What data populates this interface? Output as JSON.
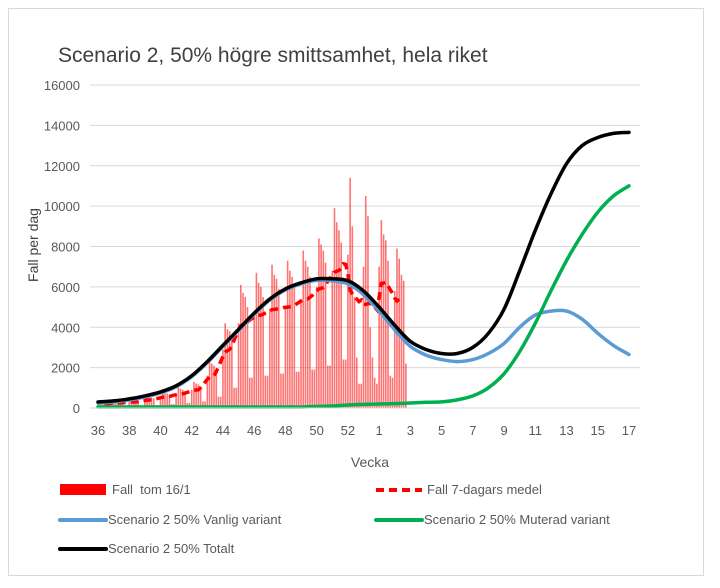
{
  "chart_data": {
    "type": "bar+line",
    "title": "Scenario 2, 50% högre smittsamhet, hela riket",
    "xlabel": "Vecka",
    "ylabel": "Fall per dag",
    "ylim": [
      0,
      16000
    ],
    "yticks": [
      0,
      2000,
      4000,
      6000,
      8000,
      10000,
      12000,
      14000,
      16000
    ],
    "grid": true,
    "legend_position": "bottom",
    "weeks": [
      "36",
      "37",
      "38",
      "39",
      "40",
      "41",
      "42",
      "43",
      "44",
      "45",
      "46",
      "47",
      "48",
      "49",
      "50",
      "51",
      "52",
      "53",
      "1",
      "2",
      "3",
      "4",
      "5",
      "6",
      "7",
      "8",
      "9",
      "10",
      "11",
      "12",
      "13",
      "14",
      "15",
      "16",
      "17"
    ],
    "xtick_labels": [
      "36",
      "38",
      "40",
      "42",
      "44",
      "46",
      "48",
      "50",
      "52",
      "1",
      "3",
      "5",
      "7",
      "9",
      "11",
      "13",
      "15",
      "17"
    ],
    "daily_cases": {
      "name": "Fall  tom 16/1",
      "color": "#ff0000",
      "values": [
        200,
        290,
        270,
        260,
        240,
        70,
        70,
        250,
        360,
        340,
        330,
        300,
        90,
        90,
        300,
        440,
        400,
        390,
        360,
        100,
        110,
        400,
        580,
        540,
        520,
        480,
        140,
        140,
        550,
        800,
        740,
        720,
        660,
        190,
        190,
        700,
        1020,
        950,
        910,
        840,
        250,
        250,
        900,
        1300,
        1220,
        1170,
        1080,
        320,
        320,
        1600,
        2300,
        2200,
        2100,
        1900,
        560,
        560,
        2900,
        4200,
        3900,
        3800,
        3500,
        1000,
        1000,
        4200,
        6100,
        5700,
        5500,
        5000,
        1500,
        1500,
        4600,
        6700,
        6200,
        6000,
        5500,
        1600,
        1600,
        4900,
        7100,
        6600,
        6400,
        5900,
        1700,
        1700,
        5000,
        7300,
        6800,
        6500,
        6000,
        1800,
        1800,
        5400,
        7800,
        7300,
        7000,
        6500,
        1900,
        1900,
        6000,
        8400,
        8100,
        7800,
        7200,
        2100,
        2100,
        6800,
        9900,
        9200,
        8800,
        8200,
        2400,
        2400,
        7600,
        11400,
        9000,
        5500,
        2500,
        1200,
        1200,
        7000,
        10500,
        9500,
        4000,
        2500,
        1500,
        1200,
        7000,
        9300,
        8600,
        8300,
        7300,
        1600,
        1500,
        5800,
        7900,
        7400,
        6600,
        6300,
        2200
      ]
    },
    "series": [
      {
        "name": "Fall 7-dagars medel",
        "color": "#ff0000",
        "style": "dashed",
        "derived_from": "daily_cases 7-day rolling mean"
      },
      {
        "name": "Scenario 2 50% Vanlig variant",
        "color": "#5b9bd5",
        "values": [
          250,
          300,
          400,
          550,
          750,
          1050,
          1550,
          2250,
          3050,
          3850,
          4650,
          5350,
          5850,
          6150,
          6320,
          6300,
          6150,
          5620,
          4800,
          3880,
          3050,
          2620,
          2400,
          2300,
          2400,
          2700,
          3200,
          4000,
          4600,
          4800,
          4800,
          4400,
          3700,
          3100,
          2650
        ]
      },
      {
        "name": "Scenario 2 50% Muterad variant",
        "color": "#00b050",
        "values": [
          50,
          50,
          50,
          50,
          50,
          50,
          50,
          50,
          50,
          50,
          50,
          50,
          50,
          50,
          80,
          100,
          150,
          180,
          200,
          220,
          250,
          280,
          300,
          400,
          600,
          1000,
          1700,
          2800,
          4200,
          5800,
          7300,
          8600,
          9700,
          10500,
          11000
        ]
      },
      {
        "name": "Scenario 2 50% Totalt",
        "color": "#000000",
        "values": [
          300,
          350,
          450,
          600,
          800,
          1100,
          1600,
          2300,
          3100,
          3900,
          4700,
          5400,
          5900,
          6200,
          6400,
          6400,
          6300,
          5800,
          5000,
          4100,
          3300,
          2900,
          2700,
          2700,
          3000,
          3700,
          4900,
          6800,
          8800,
          10600,
          12100,
          13000,
          13400,
          13600,
          13650
        ]
      }
    ]
  }
}
